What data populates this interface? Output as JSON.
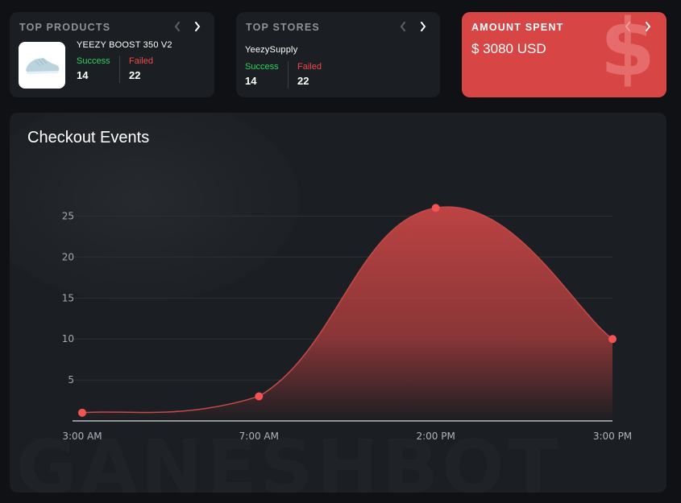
{
  "top_products": {
    "title": "TOP PRODUCTS",
    "product_name": "YEEZY BOOST 350 V2",
    "image": "sneaker",
    "success_label": "Success",
    "success_value": "14",
    "failed_label": "Failed",
    "failed_value": "22"
  },
  "top_stores": {
    "title": "TOP STORES",
    "store_name": "YeezySupply",
    "success_label": "Success",
    "success_value": "14",
    "failed_label": "Failed",
    "failed_value": "22"
  },
  "amount_spent": {
    "title": "AMOUNT SPENT",
    "value": "$ 3080 USD",
    "icon_glyph": "$"
  },
  "checkout_events": {
    "title": "Checkout Events",
    "watermark": "GANESHBOT"
  },
  "colors": {
    "background": "#0f1114",
    "card": "#1b1e22",
    "accent_red": "#d74545",
    "success_green": "#2bd35d",
    "failed_red": "#f24a4a",
    "point_red": "#f25353"
  },
  "chart_data": {
    "type": "area",
    "title": "Checkout Events",
    "categories": [
      "3:00 AM",
      "7:00 AM",
      "2:00 PM",
      "3:00 PM"
    ],
    "values": [
      1,
      3,
      26,
      10
    ],
    "yticks": [
      5,
      10,
      15,
      20,
      25
    ],
    "ylim": [
      0,
      28
    ],
    "grid": true
  }
}
